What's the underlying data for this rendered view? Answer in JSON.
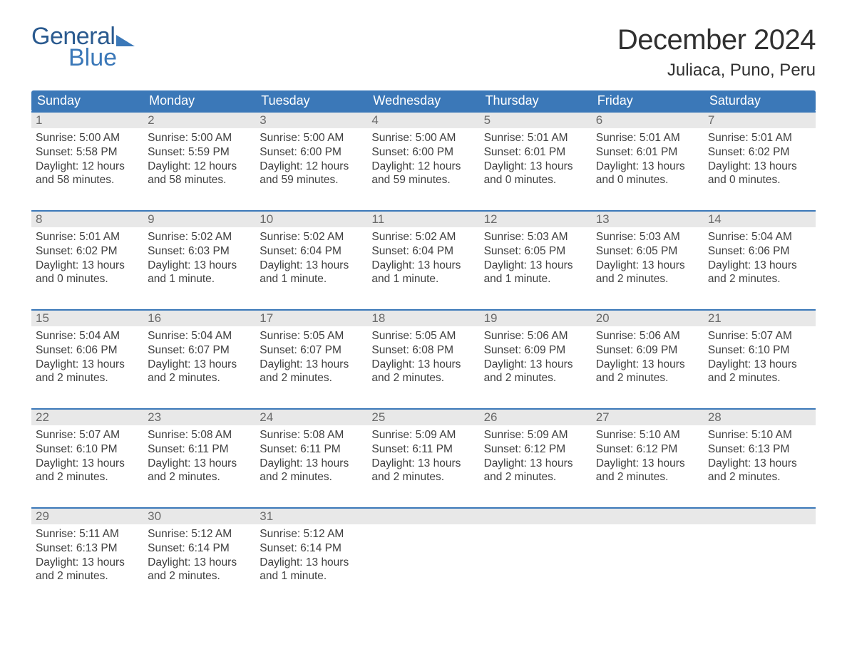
{
  "logo": {
    "word1": "General",
    "word2": "Blue"
  },
  "title": {
    "month": "December 2024",
    "location": "Juliaca, Puno, Peru"
  },
  "calendar": {
    "type": "table",
    "day_headers": [
      "Sunday",
      "Monday",
      "Tuesday",
      "Wednesday",
      "Thursday",
      "Friday",
      "Saturday"
    ],
    "colors": {
      "header_bg": "#3b78b8",
      "header_text": "#ffffff",
      "daynum_bg": "#e8e8e8",
      "row_rule": "#3b78b8",
      "text": "#404040",
      "background": "#ffffff"
    },
    "fontsizes": {
      "header": 18,
      "daynum": 17,
      "detail": 15.5,
      "title_month": 40,
      "title_location": 24
    },
    "weeks": [
      [
        {
          "n": "1",
          "sr": "Sunrise: 5:00 AM",
          "ss": "Sunset: 5:58 PM",
          "dl": "Daylight: 12 hours and 58 minutes."
        },
        {
          "n": "2",
          "sr": "Sunrise: 5:00 AM",
          "ss": "Sunset: 5:59 PM",
          "dl": "Daylight: 12 hours and 58 minutes."
        },
        {
          "n": "3",
          "sr": "Sunrise: 5:00 AM",
          "ss": "Sunset: 6:00 PM",
          "dl": "Daylight: 12 hours and 59 minutes."
        },
        {
          "n": "4",
          "sr": "Sunrise: 5:00 AM",
          "ss": "Sunset: 6:00 PM",
          "dl": "Daylight: 12 hours and 59 minutes."
        },
        {
          "n": "5",
          "sr": "Sunrise: 5:01 AM",
          "ss": "Sunset: 6:01 PM",
          "dl": "Daylight: 13 hours and 0 minutes."
        },
        {
          "n": "6",
          "sr": "Sunrise: 5:01 AM",
          "ss": "Sunset: 6:01 PM",
          "dl": "Daylight: 13 hours and 0 minutes."
        },
        {
          "n": "7",
          "sr": "Sunrise: 5:01 AM",
          "ss": "Sunset: 6:02 PM",
          "dl": "Daylight: 13 hours and 0 minutes."
        }
      ],
      [
        {
          "n": "8",
          "sr": "Sunrise: 5:01 AM",
          "ss": "Sunset: 6:02 PM",
          "dl": "Daylight: 13 hours and 0 minutes."
        },
        {
          "n": "9",
          "sr": "Sunrise: 5:02 AM",
          "ss": "Sunset: 6:03 PM",
          "dl": "Daylight: 13 hours and 1 minute."
        },
        {
          "n": "10",
          "sr": "Sunrise: 5:02 AM",
          "ss": "Sunset: 6:04 PM",
          "dl": "Daylight: 13 hours and 1 minute."
        },
        {
          "n": "11",
          "sr": "Sunrise: 5:02 AM",
          "ss": "Sunset: 6:04 PM",
          "dl": "Daylight: 13 hours and 1 minute."
        },
        {
          "n": "12",
          "sr": "Sunrise: 5:03 AM",
          "ss": "Sunset: 6:05 PM",
          "dl": "Daylight: 13 hours and 1 minute."
        },
        {
          "n": "13",
          "sr": "Sunrise: 5:03 AM",
          "ss": "Sunset: 6:05 PM",
          "dl": "Daylight: 13 hours and 2 minutes."
        },
        {
          "n": "14",
          "sr": "Sunrise: 5:04 AM",
          "ss": "Sunset: 6:06 PM",
          "dl": "Daylight: 13 hours and 2 minutes."
        }
      ],
      [
        {
          "n": "15",
          "sr": "Sunrise: 5:04 AM",
          "ss": "Sunset: 6:06 PM",
          "dl": "Daylight: 13 hours and 2 minutes."
        },
        {
          "n": "16",
          "sr": "Sunrise: 5:04 AM",
          "ss": "Sunset: 6:07 PM",
          "dl": "Daylight: 13 hours and 2 minutes."
        },
        {
          "n": "17",
          "sr": "Sunrise: 5:05 AM",
          "ss": "Sunset: 6:07 PM",
          "dl": "Daylight: 13 hours and 2 minutes."
        },
        {
          "n": "18",
          "sr": "Sunrise: 5:05 AM",
          "ss": "Sunset: 6:08 PM",
          "dl": "Daylight: 13 hours and 2 minutes."
        },
        {
          "n": "19",
          "sr": "Sunrise: 5:06 AM",
          "ss": "Sunset: 6:09 PM",
          "dl": "Daylight: 13 hours and 2 minutes."
        },
        {
          "n": "20",
          "sr": "Sunrise: 5:06 AM",
          "ss": "Sunset: 6:09 PM",
          "dl": "Daylight: 13 hours and 2 minutes."
        },
        {
          "n": "21",
          "sr": "Sunrise: 5:07 AM",
          "ss": "Sunset: 6:10 PM",
          "dl": "Daylight: 13 hours and 2 minutes."
        }
      ],
      [
        {
          "n": "22",
          "sr": "Sunrise: 5:07 AM",
          "ss": "Sunset: 6:10 PM",
          "dl": "Daylight: 13 hours and 2 minutes."
        },
        {
          "n": "23",
          "sr": "Sunrise: 5:08 AM",
          "ss": "Sunset: 6:11 PM",
          "dl": "Daylight: 13 hours and 2 minutes."
        },
        {
          "n": "24",
          "sr": "Sunrise: 5:08 AM",
          "ss": "Sunset: 6:11 PM",
          "dl": "Daylight: 13 hours and 2 minutes."
        },
        {
          "n": "25",
          "sr": "Sunrise: 5:09 AM",
          "ss": "Sunset: 6:11 PM",
          "dl": "Daylight: 13 hours and 2 minutes."
        },
        {
          "n": "26",
          "sr": "Sunrise: 5:09 AM",
          "ss": "Sunset: 6:12 PM",
          "dl": "Daylight: 13 hours and 2 minutes."
        },
        {
          "n": "27",
          "sr": "Sunrise: 5:10 AM",
          "ss": "Sunset: 6:12 PM",
          "dl": "Daylight: 13 hours and 2 minutes."
        },
        {
          "n": "28",
          "sr": "Sunrise: 5:10 AM",
          "ss": "Sunset: 6:13 PM",
          "dl": "Daylight: 13 hours and 2 minutes."
        }
      ],
      [
        {
          "n": "29",
          "sr": "Sunrise: 5:11 AM",
          "ss": "Sunset: 6:13 PM",
          "dl": "Daylight: 13 hours and 2 minutes."
        },
        {
          "n": "30",
          "sr": "Sunrise: 5:12 AM",
          "ss": "Sunset: 6:14 PM",
          "dl": "Daylight: 13 hours and 2 minutes."
        },
        {
          "n": "31",
          "sr": "Sunrise: 5:12 AM",
          "ss": "Sunset: 6:14 PM",
          "dl": "Daylight: 13 hours and 1 minute."
        },
        null,
        null,
        null,
        null
      ]
    ]
  }
}
